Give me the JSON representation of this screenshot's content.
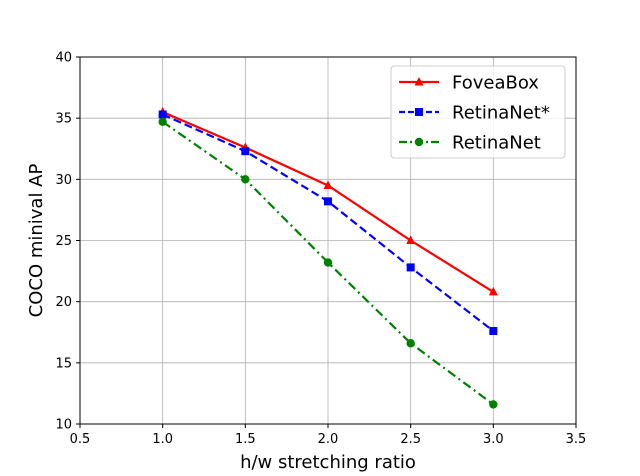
{
  "chart_data": {
    "type": "line",
    "title": "",
    "xlabel": "h/w stretching ratio",
    "ylabel": "COCO minival AP",
    "xlim": [
      0.5,
      3.5
    ],
    "ylim": [
      10,
      40
    ],
    "xticks": [
      0.5,
      1.0,
      1.5,
      2.0,
      2.5,
      3.0,
      3.5
    ],
    "yticks": [
      10,
      15,
      20,
      25,
      30,
      35,
      40
    ],
    "xtick_labels": [
      "0.5",
      "1.0",
      "1.5",
      "2.0",
      "2.5",
      "3.0",
      "3.5"
    ],
    "ytick_labels": [
      "10",
      "15",
      "20",
      "25",
      "30",
      "35",
      "40"
    ],
    "grid": true,
    "legend_position": "top-right",
    "x": [
      1.0,
      1.5,
      2.0,
      2.5,
      3.0
    ],
    "series": [
      {
        "name": "FoveaBox",
        "values": [
          35.5,
          32.6,
          29.5,
          25.0,
          20.8
        ],
        "color": "#ff0000",
        "marker": "triangle",
        "line_style": "solid"
      },
      {
        "name": "RetinaNet*",
        "values": [
          35.3,
          32.3,
          28.2,
          22.8,
          17.6
        ],
        "color": "#0000ff",
        "marker": "square",
        "line_style": "dashed"
      },
      {
        "name": "RetinaNet",
        "values": [
          34.7,
          30.0,
          23.2,
          16.6,
          11.6
        ],
        "color": "#008000",
        "marker": "circle",
        "line_style": "dashdot"
      }
    ]
  }
}
